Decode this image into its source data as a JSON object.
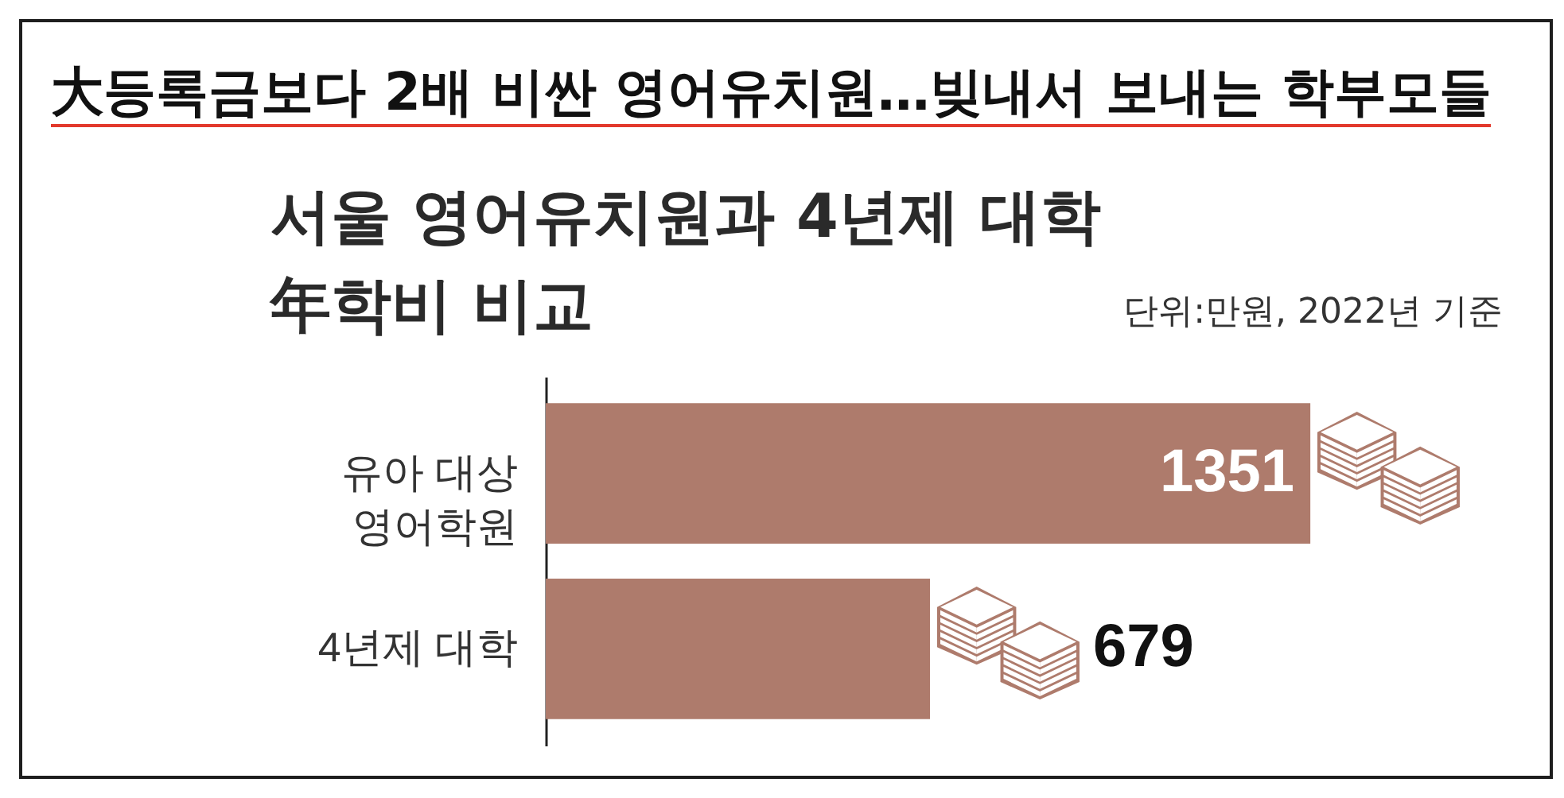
{
  "chart_data": {
    "type": "bar",
    "orientation": "horizontal",
    "title": "大등록금보다 2배 비싼 영어유치원…빚내서 보내는 학부모들",
    "subtitle": "서울 영어유치원과 4년제 대학 年학비 비교",
    "annotations": [
      "단위:만원, 2022년 기준"
    ],
    "categories": [
      "유아 대상 영어학원",
      "4년제 대학"
    ],
    "values": [
      1351,
      679
    ],
    "color": "#ae7b6c",
    "data_labels": true
  }
}
